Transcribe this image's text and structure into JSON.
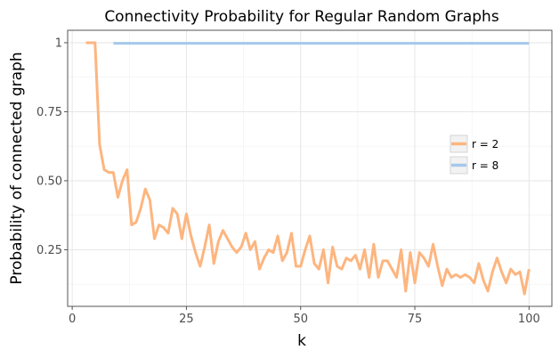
{
  "chart_data": {
    "type": "line",
    "title": "Connectivity Probability for Regular Random Graphs",
    "xlabel": "k",
    "ylabel": "Probability of connected graph",
    "xlim": [
      -1,
      105
    ],
    "ylim": [
      0.045,
      1.045
    ],
    "x_ticks": [
      {
        "value": 0,
        "label": "0"
      },
      {
        "value": 25,
        "label": "25"
      },
      {
        "value": 50,
        "label": "50"
      },
      {
        "value": 75,
        "label": "75"
      },
      {
        "value": 100,
        "label": "100"
      }
    ],
    "y_ticks": [
      {
        "value": 0.25,
        "label": "0.25"
      },
      {
        "value": 0.5,
        "label": "0.50"
      },
      {
        "value": 0.75,
        "label": "0.75"
      },
      {
        "value": 1.0,
        "label": "1"
      }
    ],
    "grid": true,
    "legend": "right",
    "series": [
      {
        "name": "r = 2",
        "color": "#fdb57f",
        "points": [
          [
            3,
            1.0
          ],
          [
            4,
            1.0
          ],
          [
            5,
            1.0
          ],
          [
            6,
            0.63
          ],
          [
            7,
            0.54
          ],
          [
            8,
            0.53
          ],
          [
            9,
            0.53
          ],
          [
            10,
            0.44
          ],
          [
            11,
            0.5
          ],
          [
            12,
            0.54
          ],
          [
            13,
            0.34
          ],
          [
            14,
            0.35
          ],
          [
            15,
            0.4
          ],
          [
            16,
            0.47
          ],
          [
            17,
            0.43
          ],
          [
            18,
            0.29
          ],
          [
            19,
            0.34
          ],
          [
            20,
            0.33
          ],
          [
            21,
            0.31
          ],
          [
            22,
            0.4
          ],
          [
            23,
            0.38
          ],
          [
            24,
            0.29
          ],
          [
            25,
            0.38
          ],
          [
            26,
            0.3
          ],
          [
            27,
            0.24
          ],
          [
            28,
            0.19
          ],
          [
            29,
            0.26
          ],
          [
            30,
            0.34
          ],
          [
            31,
            0.2
          ],
          [
            32,
            0.28
          ],
          [
            33,
            0.32
          ],
          [
            34,
            0.29
          ],
          [
            35,
            0.26
          ],
          [
            36,
            0.24
          ],
          [
            37,
            0.26
          ],
          [
            38,
            0.31
          ],
          [
            39,
            0.25
          ],
          [
            40,
            0.28
          ],
          [
            41,
            0.18
          ],
          [
            42,
            0.22
          ],
          [
            43,
            0.25
          ],
          [
            44,
            0.24
          ],
          [
            45,
            0.3
          ],
          [
            46,
            0.21
          ],
          [
            47,
            0.24
          ],
          [
            48,
            0.31
          ],
          [
            49,
            0.19
          ],
          [
            50,
            0.19
          ],
          [
            51,
            0.25
          ],
          [
            52,
            0.3
          ],
          [
            53,
            0.2
          ],
          [
            54,
            0.18
          ],
          [
            55,
            0.25
          ],
          [
            56,
            0.13
          ],
          [
            57,
            0.26
          ],
          [
            58,
            0.19
          ],
          [
            59,
            0.18
          ],
          [
            60,
            0.22
          ],
          [
            61,
            0.21
          ],
          [
            62,
            0.23
          ],
          [
            63,
            0.18
          ],
          [
            64,
            0.25
          ],
          [
            65,
            0.15
          ],
          [
            66,
            0.27
          ],
          [
            67,
            0.15
          ],
          [
            68,
            0.21
          ],
          [
            69,
            0.21
          ],
          [
            70,
            0.18
          ],
          [
            71,
            0.15
          ],
          [
            72,
            0.25
          ],
          [
            73,
            0.1
          ],
          [
            74,
            0.24
          ],
          [
            75,
            0.13
          ],
          [
            76,
            0.24
          ],
          [
            77,
            0.22
          ],
          [
            78,
            0.19
          ],
          [
            79,
            0.27
          ],
          [
            80,
            0.19
          ],
          [
            81,
            0.12
          ],
          [
            82,
            0.18
          ],
          [
            83,
            0.15
          ],
          [
            84,
            0.16
          ],
          [
            85,
            0.15
          ],
          [
            86,
            0.16
          ],
          [
            87,
            0.15
          ],
          [
            88,
            0.13
          ],
          [
            89,
            0.2
          ],
          [
            90,
            0.14
          ],
          [
            91,
            0.1
          ],
          [
            92,
            0.17
          ],
          [
            93,
            0.22
          ],
          [
            94,
            0.17
          ],
          [
            95,
            0.13
          ],
          [
            96,
            0.18
          ],
          [
            97,
            0.16
          ],
          [
            98,
            0.17
          ],
          [
            99,
            0.09
          ],
          [
            100,
            0.18
          ]
        ]
      },
      {
        "name": "r = 8",
        "color": "#a5c8ec",
        "points": [
          [
            9,
            0.998
          ],
          [
            100,
            0.998
          ]
        ]
      }
    ]
  }
}
